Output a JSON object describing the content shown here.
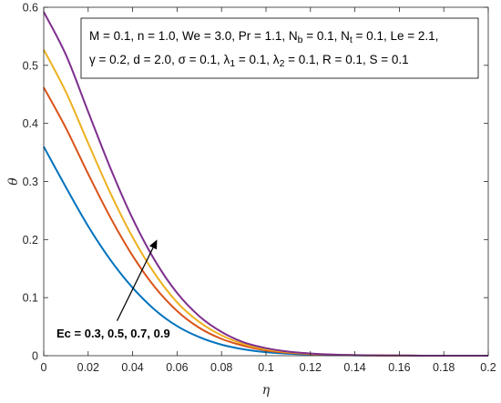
{
  "chart_data": {
    "type": "line",
    "title": "",
    "xlabel": "η",
    "ylabel": "θ",
    "xlim": [
      0,
      0.2
    ],
    "ylim": [
      0,
      0.6
    ],
    "x_ticks": [
      "0",
      "0.02",
      "0.04",
      "0.06",
      "0.08",
      "0.1",
      "0.12",
      "0.14",
      "0.16",
      "0.18",
      "0.2"
    ],
    "y_ticks": [
      "0",
      "0.1",
      "0.2",
      "0.3",
      "0.4",
      "0.5",
      "0.6"
    ],
    "grid": false,
    "x": [
      0,
      0.01,
      0.02,
      0.03,
      0.04,
      0.05,
      0.06,
      0.07,
      0.08,
      0.09,
      0.1,
      0.11,
      0.12,
      0.13,
      0.14,
      0.15,
      0.16,
      0.17,
      0.18,
      0.19,
      0.2
    ],
    "series": [
      {
        "ec": 0.3,
        "color": "#0072BD",
        "values": [
          0.36,
          0.29,
          0.223,
          0.165,
          0.117,
          0.079,
          0.051,
          0.032,
          0.019,
          0.011,
          0.006,
          0.0035,
          0.002,
          0.001,
          0.0006,
          0.0003,
          0.0002,
          0.0001,
          0.0001,
          0.0,
          0.0
        ]
      },
      {
        "ec": 0.5,
        "color": "#D95319",
        "values": [
          0.462,
          0.392,
          0.313,
          0.238,
          0.172,
          0.118,
          0.077,
          0.048,
          0.029,
          0.017,
          0.009,
          0.005,
          0.0028,
          0.0015,
          0.0008,
          0.0004,
          0.0002,
          0.0001,
          0.0001,
          0.0,
          0.0
        ]
      },
      {
        "ec": 0.7,
        "color": "#EDB120",
        "values": [
          0.527,
          0.454,
          0.366,
          0.28,
          0.204,
          0.141,
          0.092,
          0.058,
          0.035,
          0.02,
          0.011,
          0.006,
          0.0033,
          0.0017,
          0.0009,
          0.0005,
          0.0002,
          0.0001,
          0.0001,
          0.0,
          0.0
        ]
      },
      {
        "ec": 0.9,
        "color": "#7E2F8E",
        "values": [
          0.592,
          0.518,
          0.42,
          0.323,
          0.236,
          0.164,
          0.108,
          0.068,
          0.041,
          0.023,
          0.013,
          0.007,
          0.0038,
          0.002,
          0.001,
          0.0005,
          0.0003,
          0.0001,
          0.0001,
          0.0,
          0.0
        ]
      }
    ],
    "legend": {
      "placement": "top-right",
      "lines": [
        [
          {
            "t": "M = 0.1, n = 1.0, We = 3.0, Pr = 1.1, N"
          },
          {
            "t": "b",
            "sub": true
          },
          {
            "t": " = 0.1, N"
          },
          {
            "t": "t",
            "sub": true
          },
          {
            "t": " = 0.1, Le = 2.1,"
          }
        ],
        [
          {
            "t": "γ = 0.2, d = 2.0, σ = 0.1, λ"
          },
          {
            "t": "1",
            "sub": true
          },
          {
            "t": " = 0.1, λ"
          },
          {
            "t": "2",
            "sub": true
          },
          {
            "t": " = 0.1, R = 0.1, S = 0.1"
          }
        ]
      ]
    },
    "annotation": {
      "text": "Ec = 0.3, 0.5, 0.7, 0.9",
      "arrow_from": [
        0.033,
        0.06
      ],
      "arrow_to": [
        0.051,
        0.2
      ]
    }
  }
}
